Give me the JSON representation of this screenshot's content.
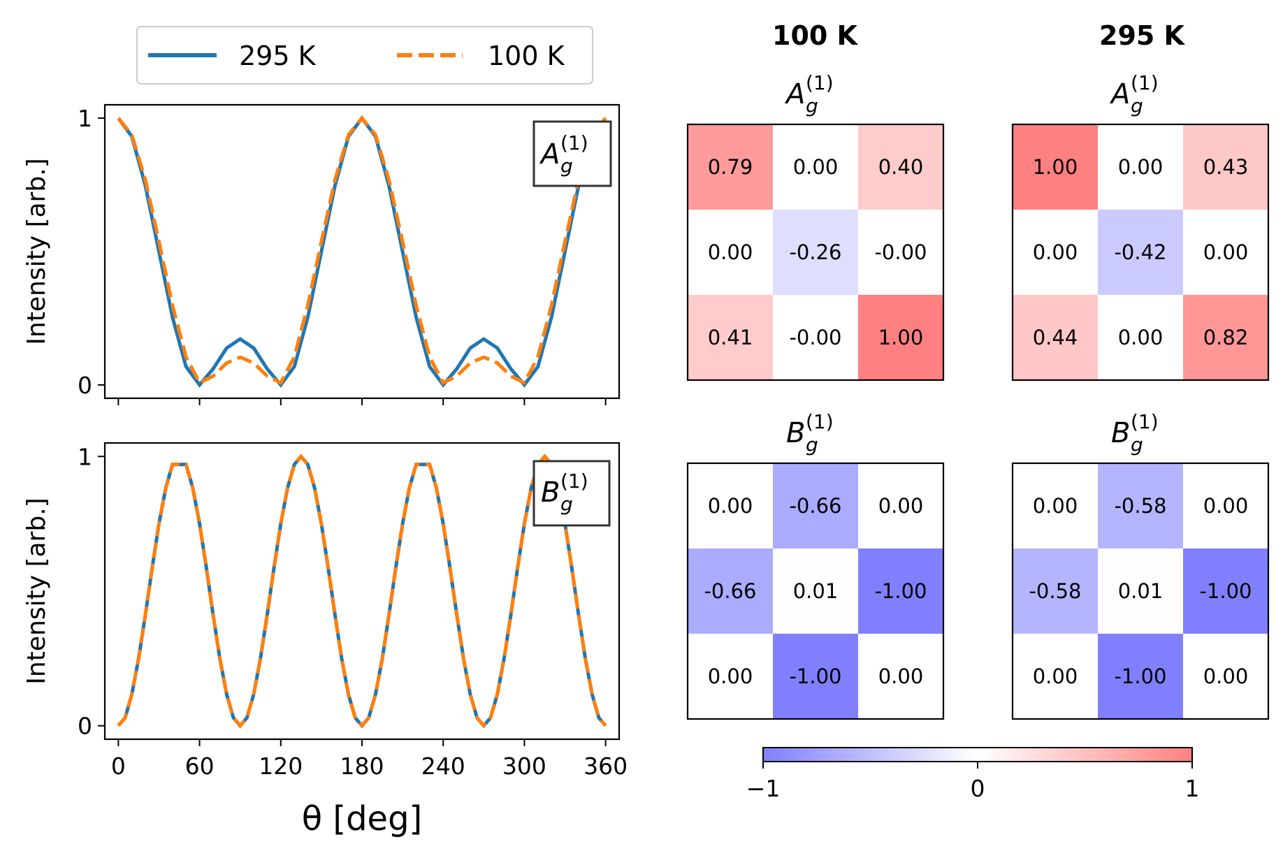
{
  "chart_data": [
    {
      "type": "line",
      "title": "",
      "xlabel": "θ [deg]",
      "ylabel": "Intensity [arb.]",
      "xlim": [
        -10,
        370
      ],
      "ylim": [
        -0.05,
        1.05
      ],
      "x_ticks": [
        0,
        60,
        120,
        180,
        240,
        300,
        360
      ],
      "x_tick_labels": [
        "0",
        "60",
        "120",
        "180",
        "240",
        "300",
        "360"
      ],
      "y_ticks": [
        0,
        1
      ],
      "y_tick_labels": [
        "0",
        "1"
      ],
      "x_tick_labels_visible": false,
      "legend": {
        "placement": "top-center",
        "entries": [
          "295 K",
          "100 K"
        ]
      },
      "panel_label": {
        "letter": "A",
        "sub": "g",
        "sup": "(1)"
      },
      "series": [
        {
          "name": "295 K",
          "color": "#1f77b4",
          "style": "solid",
          "x": [
            0,
            10,
            20,
            30,
            40,
            50,
            60,
            70,
            80,
            90,
            100,
            110,
            120,
            130,
            140,
            150,
            160,
            170,
            180,
            190,
            200,
            210,
            220,
            230,
            240,
            250,
            260,
            270,
            280,
            290,
            300,
            310,
            320,
            330,
            340,
            350,
            360
          ],
          "y": [
            1.0,
            0.931,
            0.746,
            0.5,
            0.254,
            0.069,
            0.0,
            0.06,
            0.138,
            0.172,
            0.138,
            0.06,
            0.0,
            0.069,
            0.254,
            0.5,
            0.746,
            0.931,
            1.0,
            0.931,
            0.746,
            0.5,
            0.254,
            0.069,
            0.0,
            0.06,
            0.138,
            0.172,
            0.138,
            0.06,
            0.0,
            0.069,
            0.254,
            0.5,
            0.746,
            0.931,
            1.0
          ]
        },
        {
          "name": "100 K",
          "color": "#ff7f0e",
          "style": "dashed",
          "x": [
            0,
            10,
            20,
            30,
            40,
            50,
            60,
            70,
            80,
            90,
            100,
            110,
            120,
            130,
            140,
            150,
            160,
            170,
            180,
            190,
            200,
            210,
            220,
            230,
            240,
            250,
            260,
            270,
            280,
            290,
            300,
            310,
            320,
            330,
            340,
            350,
            360
          ],
          "y": [
            1.0,
            0.937,
            0.768,
            0.537,
            0.298,
            0.105,
            0.008,
            0.033,
            0.082,
            0.104,
            0.082,
            0.033,
            0.008,
            0.105,
            0.298,
            0.537,
            0.768,
            0.937,
            1.0,
            0.937,
            0.768,
            0.537,
            0.298,
            0.105,
            0.008,
            0.033,
            0.082,
            0.104,
            0.082,
            0.033,
            0.008,
            0.105,
            0.298,
            0.537,
            0.768,
            0.937,
            1.0
          ]
        }
      ]
    },
    {
      "type": "line",
      "title": "",
      "xlabel": "θ [deg]",
      "ylabel": "Intensity [arb.]",
      "xlim": [
        -10,
        370
      ],
      "ylim": [
        -0.05,
        1.05
      ],
      "x_ticks": [
        0,
        60,
        120,
        180,
        240,
        300,
        360
      ],
      "x_tick_labels": [
        "0",
        "60",
        "120",
        "180",
        "240",
        "300",
        "360"
      ],
      "y_ticks": [
        0,
        1
      ],
      "y_tick_labels": [
        "0",
        "1"
      ],
      "x_tick_labels_visible": true,
      "panel_label": {
        "letter": "B",
        "sub": "g",
        "sup": "(1)"
      },
      "series": [
        {
          "name": "295 K",
          "color": "#1f77b4",
          "style": "solid",
          "x": [
            0,
            5,
            10,
            15,
            20,
            25,
            30,
            35,
            40,
            45,
            50,
            55,
            60,
            65,
            70,
            75,
            80,
            85,
            90,
            95,
            100,
            105,
            110,
            115,
            120,
            125,
            130,
            135,
            140,
            145,
            150,
            155,
            160,
            165,
            170,
            175,
            180,
            185,
            190,
            195,
            200,
            205,
            210,
            215,
            220,
            225,
            230,
            235,
            240,
            245,
            250,
            255,
            260,
            265,
            270,
            275,
            280,
            285,
            290,
            295,
            300,
            305,
            310,
            315,
            320,
            325,
            330,
            335,
            340,
            345,
            350,
            355,
            360
          ],
          "y": [
            0.0,
            0.03,
            0.117,
            0.25,
            0.413,
            0.587,
            0.75,
            0.883,
            0.97,
            0.97,
            0.97,
            0.883,
            0.75,
            0.587,
            0.413,
            0.25,
            0.117,
            0.03,
            0.0,
            0.03,
            0.117,
            0.25,
            0.413,
            0.587,
            0.75,
            0.883,
            0.97,
            1.0,
            0.97,
            0.883,
            0.75,
            0.587,
            0.413,
            0.25,
            0.117,
            0.03,
            0.0,
            0.03,
            0.117,
            0.25,
            0.413,
            0.587,
            0.75,
            0.883,
            0.97,
            0.97,
            0.97,
            0.883,
            0.75,
            0.587,
            0.413,
            0.25,
            0.117,
            0.03,
            0.0,
            0.03,
            0.117,
            0.25,
            0.413,
            0.587,
            0.75,
            0.883,
            0.97,
            1.0,
            0.97,
            0.883,
            0.75,
            0.587,
            0.413,
            0.25,
            0.117,
            0.03,
            0.0
          ]
        },
        {
          "name": "100 K",
          "color": "#ff7f0e",
          "style": "dashed",
          "x": [
            0,
            5,
            10,
            15,
            20,
            25,
            30,
            35,
            40,
            45,
            50,
            55,
            60,
            65,
            70,
            75,
            80,
            85,
            90,
            95,
            100,
            105,
            110,
            115,
            120,
            125,
            130,
            135,
            140,
            145,
            150,
            155,
            160,
            165,
            170,
            175,
            180,
            185,
            190,
            195,
            200,
            205,
            210,
            215,
            220,
            225,
            230,
            235,
            240,
            245,
            250,
            255,
            260,
            265,
            270,
            275,
            280,
            285,
            290,
            295,
            300,
            305,
            310,
            315,
            320,
            325,
            330,
            335,
            340,
            345,
            350,
            355,
            360
          ],
          "y": [
            0.0,
            0.03,
            0.117,
            0.25,
            0.413,
            0.587,
            0.75,
            0.883,
            0.97,
            0.97,
            0.97,
            0.883,
            0.75,
            0.587,
            0.413,
            0.25,
            0.117,
            0.03,
            0.0,
            0.03,
            0.117,
            0.25,
            0.413,
            0.587,
            0.75,
            0.883,
            0.97,
            1.0,
            0.97,
            0.883,
            0.75,
            0.587,
            0.413,
            0.25,
            0.117,
            0.03,
            0.0,
            0.03,
            0.117,
            0.25,
            0.413,
            0.587,
            0.75,
            0.883,
            0.97,
            0.97,
            0.97,
            0.883,
            0.75,
            0.587,
            0.413,
            0.25,
            0.117,
            0.03,
            0.0,
            0.03,
            0.117,
            0.25,
            0.413,
            0.587,
            0.75,
            0.883,
            0.97,
            1.0,
            0.97,
            0.883,
            0.75,
            0.587,
            0.413,
            0.25,
            0.117,
            0.03,
            0.0
          ]
        }
      ]
    },
    {
      "type": "heatmap",
      "title": "A_g^(1) — 100 K",
      "column_title": "100 K",
      "matrix_label": {
        "letter": "A",
        "sub": "g",
        "sup": "(1)"
      },
      "values": [
        [
          0.79,
          0.0,
          0.4
        ],
        [
          0.0,
          -0.26,
          -0.0
        ],
        [
          0.41,
          -0.0,
          1.0
        ]
      ],
      "labels": [
        [
          "0.79",
          "0.00",
          "0.40"
        ],
        [
          "0.00",
          "-0.26",
          "-0.00"
        ],
        [
          "0.41",
          "-0.00",
          "1.00"
        ]
      ]
    },
    {
      "type": "heatmap",
      "title": "A_g^(1) — 295 K",
      "column_title": "295 K",
      "matrix_label": {
        "letter": "A",
        "sub": "g",
        "sup": "(1)"
      },
      "values": [
        [
          1.0,
          0.0,
          0.43
        ],
        [
          0.0,
          -0.42,
          0.0
        ],
        [
          0.44,
          0.0,
          0.82
        ]
      ],
      "labels": [
        [
          "1.00",
          "0.00",
          "0.43"
        ],
        [
          "0.00",
          "-0.42",
          "0.00"
        ],
        [
          "0.44",
          "0.00",
          "0.82"
        ]
      ]
    },
    {
      "type": "heatmap",
      "title": "B_g^(1) — 100 K",
      "matrix_label": {
        "letter": "B",
        "sub": "g",
        "sup": "(1)"
      },
      "values": [
        [
          0.0,
          -0.66,
          0.0
        ],
        [
          -0.66,
          0.01,
          -1.0
        ],
        [
          0.0,
          -1.0,
          0.0
        ]
      ],
      "labels": [
        [
          "0.00",
          "-0.66",
          "0.00"
        ],
        [
          "-0.66",
          "0.01",
          "-1.00"
        ],
        [
          "0.00",
          "-1.00",
          "0.00"
        ]
      ]
    },
    {
      "type": "heatmap",
      "title": "B_g^(1) — 295 K",
      "matrix_label": {
        "letter": "B",
        "sub": "g",
        "sup": "(1)"
      },
      "values": [
        [
          0.0,
          -0.58,
          0.0
        ],
        [
          -0.58,
          0.01,
          -1.0
        ],
        [
          0.0,
          -1.0,
          0.0
        ]
      ],
      "labels": [
        [
          "0.00",
          "-0.58",
          "0.00"
        ],
        [
          "-0.58",
          "0.01",
          "-1.00"
        ],
        [
          "0.00",
          "-1.00",
          "0.00"
        ]
      ]
    }
  ],
  "colorbar": {
    "range": [
      -1,
      1
    ],
    "ticks": [
      -1,
      0,
      1
    ],
    "tick_labels": [
      "−1",
      "0",
      "1"
    ],
    "low_color": "#8080ff",
    "mid_color": "#ffffff",
    "high_color": "#ff8080"
  }
}
